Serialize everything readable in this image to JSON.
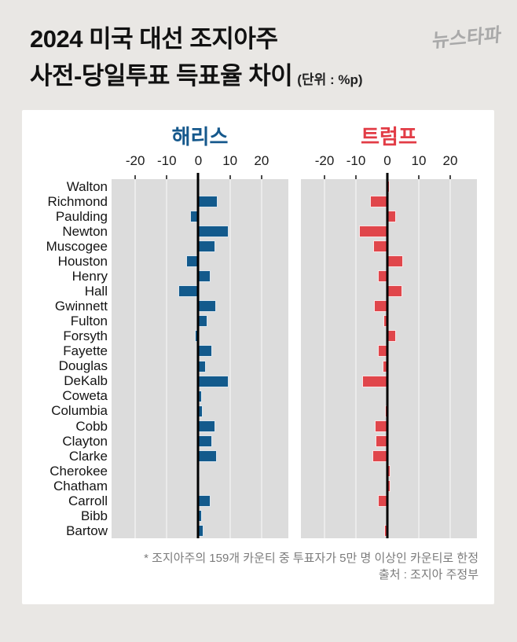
{
  "title": {
    "line1": "2024 미국 대선 조지아주",
    "line2": "사전-당일투표 득표율 차이",
    "unit": "(단위 : %p)"
  },
  "logo": {
    "text": "뉴스타파"
  },
  "colors": {
    "background": "#e9e7e4",
    "card": "#ffffff",
    "panel_bg": "#dcdcdc",
    "gridline": "#ebebeb",
    "zero_line": "#000000",
    "harris": "#135a8c",
    "trump": "#e0464b",
    "harris_header": "#15588c",
    "trump_header": "#e23c46"
  },
  "chart_data": {
    "type": "bar",
    "orientation": "horizontal",
    "unit": "%p",
    "categories": [
      "Walton",
      "Richmond",
      "Paulding",
      "Newton",
      "Muscogee",
      "Houston",
      "Henry",
      "Hall",
      "Gwinnett",
      "Fulton",
      "Forsyth",
      "Fayette",
      "Douglas",
      "DeKalb",
      "Coweta",
      "Columbia",
      "Cobb",
      "Clayton",
      "Clarke",
      "Cherokee",
      "Chatham",
      "Carroll",
      "Bibb",
      "Bartow"
    ],
    "axis": {
      "ticks": [
        -20,
        -10,
        0,
        10,
        20
      ],
      "tick_labels": [
        "-20",
        "-10",
        "0",
        "10",
        "20"
      ],
      "range": [
        -27.5,
        28.5
      ]
    },
    "series": [
      {
        "name": "해리스",
        "key": "harris",
        "color": "#135a8c",
        "header_color": "#15588c",
        "values": [
          0.2,
          6.0,
          -2.5,
          9.5,
          5.3,
          -3.8,
          3.9,
          -6.4,
          5.5,
          2.8,
          -1.0,
          4.3,
          2.4,
          9.5,
          1.0,
          1.4,
          5.3,
          4.3,
          5.8,
          0.3,
          0.3,
          3.8,
          1.2,
          1.7
        ]
      },
      {
        "name": "트럼프",
        "key": "trump",
        "color": "#e0464b",
        "header_color": "#e23c46",
        "values": [
          0.8,
          -5.5,
          2.8,
          -9.0,
          -4.6,
          5.0,
          -3.1,
          4.7,
          -4.2,
          -1.3,
          2.8,
          -3.0,
          -1.4,
          -8.0,
          -0.2,
          -0.8,
          -3.9,
          -3.8,
          -4.8,
          1.1,
          0.9,
          -3.0,
          0.0,
          -1.0
        ]
      }
    ]
  },
  "footer": {
    "note": "* 조지아주의 159개 카운티 중 투표자가 5만 명 이상인 카운티로 한정",
    "source": "출처 : 조지아 주정부"
  }
}
